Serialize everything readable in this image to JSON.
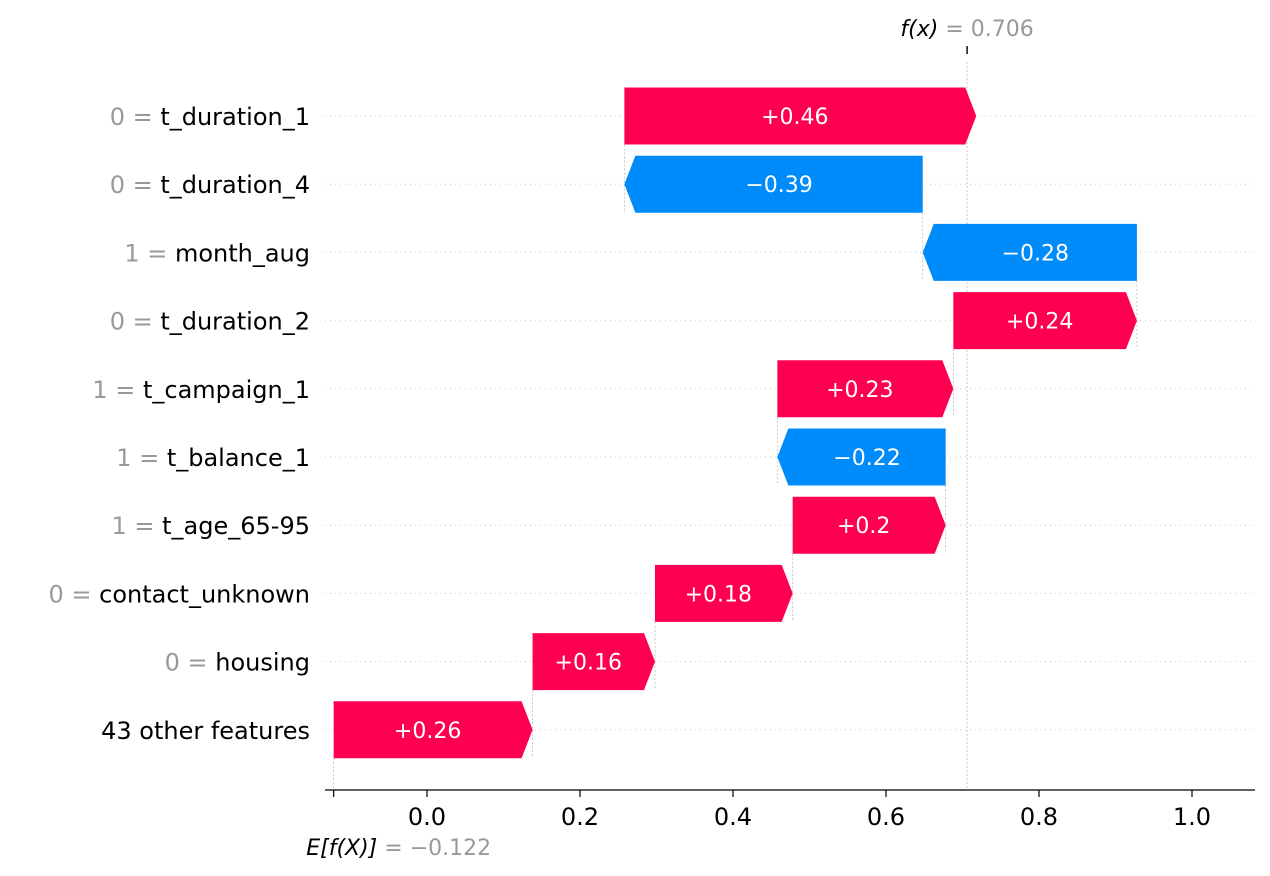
{
  "chart_data": {
    "type": "waterfall",
    "base_value": -0.122,
    "base_value_label": {
      "lhs": "E[f(X)]",
      "rhs": "= −0.122"
    },
    "output_value": 0.706,
    "output_value_label": {
      "lhs": "f(x)",
      "rhs": "= 0.706"
    },
    "xlim": [
      -0.13,
      1.08
    ],
    "x_ticks": [
      0.0,
      0.2,
      0.4,
      0.6,
      0.8,
      1.0
    ],
    "x_tick_labels": [
      "0.0",
      "0.2",
      "0.4",
      "0.6",
      "0.8",
      "1.0"
    ],
    "features": [
      {
        "value": "0",
        "name": "t_duration_1",
        "contribution": 0.46,
        "label": "+0.46"
      },
      {
        "value": "0",
        "name": "t_duration_4",
        "contribution": -0.39,
        "label": "−0.39"
      },
      {
        "value": "1",
        "name": "month_aug",
        "contribution": -0.28,
        "label": "−0.28"
      },
      {
        "value": "0",
        "name": "t_duration_2",
        "contribution": 0.24,
        "label": "+0.24"
      },
      {
        "value": "1",
        "name": "t_campaign_1",
        "contribution": 0.23,
        "label": "+0.23"
      },
      {
        "value": "1",
        "name": "t_balance_1",
        "contribution": -0.22,
        "label": "−0.22"
      },
      {
        "value": "1",
        "name": "t_age_65-95",
        "contribution": 0.2,
        "label": "+0.2"
      },
      {
        "value": "0",
        "name": "contact_unknown",
        "contribution": 0.18,
        "label": "+0.18"
      },
      {
        "value": "0",
        "name": "housing",
        "contribution": 0.16,
        "label": "+0.16"
      },
      {
        "value": "",
        "name": "43 other features",
        "contribution": 0.26,
        "label": "+0.26"
      }
    ],
    "colors": {
      "positive": "#ff0051",
      "negative": "#008bfb",
      "grid": "#cccccc",
      "guide": "#bbbbbb"
    }
  }
}
